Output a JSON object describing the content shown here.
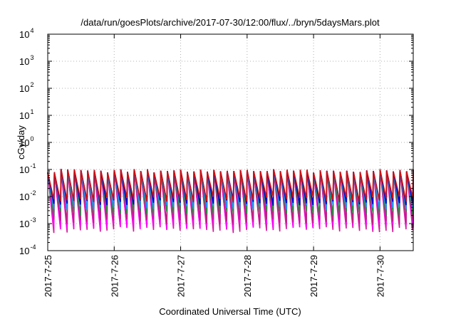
{
  "chart_data": {
    "type": "line",
    "title": "/data/run/goesPlots/archive/2017-07-30/12:00/flux/../bryn/5daysMars.plot",
    "xlabel": "Coordinated Universal Time (UTC)",
    "ylabel": "cGy/day",
    "yscale": "log",
    "ylim": [
      0.0001,
      10000
    ],
    "xlim": [
      "2017-07-25T00:00",
      "2017-07-30T12:00"
    ],
    "y_ticks": [
      {
        "value": 0.0001,
        "base": "10",
        "exp": "-4"
      },
      {
        "value": 0.001,
        "base": "10",
        "exp": "-3"
      },
      {
        "value": 0.01,
        "base": "10",
        "exp": "-2"
      },
      {
        "value": 0.1,
        "base": "10",
        "exp": "-1"
      },
      {
        "value": 1,
        "base": "10",
        "exp": "0"
      },
      {
        "value": 10,
        "base": "10",
        "exp": "1"
      },
      {
        "value": 100,
        "base": "10",
        "exp": "2"
      },
      {
        "value": 1000,
        "base": "10",
        "exp": "3"
      },
      {
        "value": 10000,
        "base": "10",
        "exp": "4"
      }
    ],
    "x_ticks": [
      {
        "value": "2017-07-25T00:00",
        "label": "2017-7-25"
      },
      {
        "value": "2017-07-26T00:00",
        "label": "2017-7-26"
      },
      {
        "value": "2017-07-27T00:00",
        "label": "2017-7-27"
      },
      {
        "value": "2017-07-28T00:00",
        "label": "2017-7-28"
      },
      {
        "value": "2017-07-29T00:00",
        "label": "2017-7-29"
      },
      {
        "value": "2017-07-30T00:00",
        "label": "2017-7-30"
      }
    ],
    "grid": true,
    "legend": "none",
    "sawtooth": {
      "period_hours": 2.4,
      "peak": 0.09,
      "bands": [
        {
          "color": "#d0209a",
          "low": 0.0006
        },
        {
          "color": "#ff00ff",
          "low": 0.0008
        },
        {
          "color": "#c02080",
          "low": 0.0012
        },
        {
          "color": "#2a8a40",
          "low": 0.0025
        },
        {
          "color": "#1e90ff",
          "low": 0.004
        },
        {
          "color": "#0000cd",
          "low": 0.006
        },
        {
          "color": "#d01010",
          "low": 0.008
        }
      ]
    }
  }
}
